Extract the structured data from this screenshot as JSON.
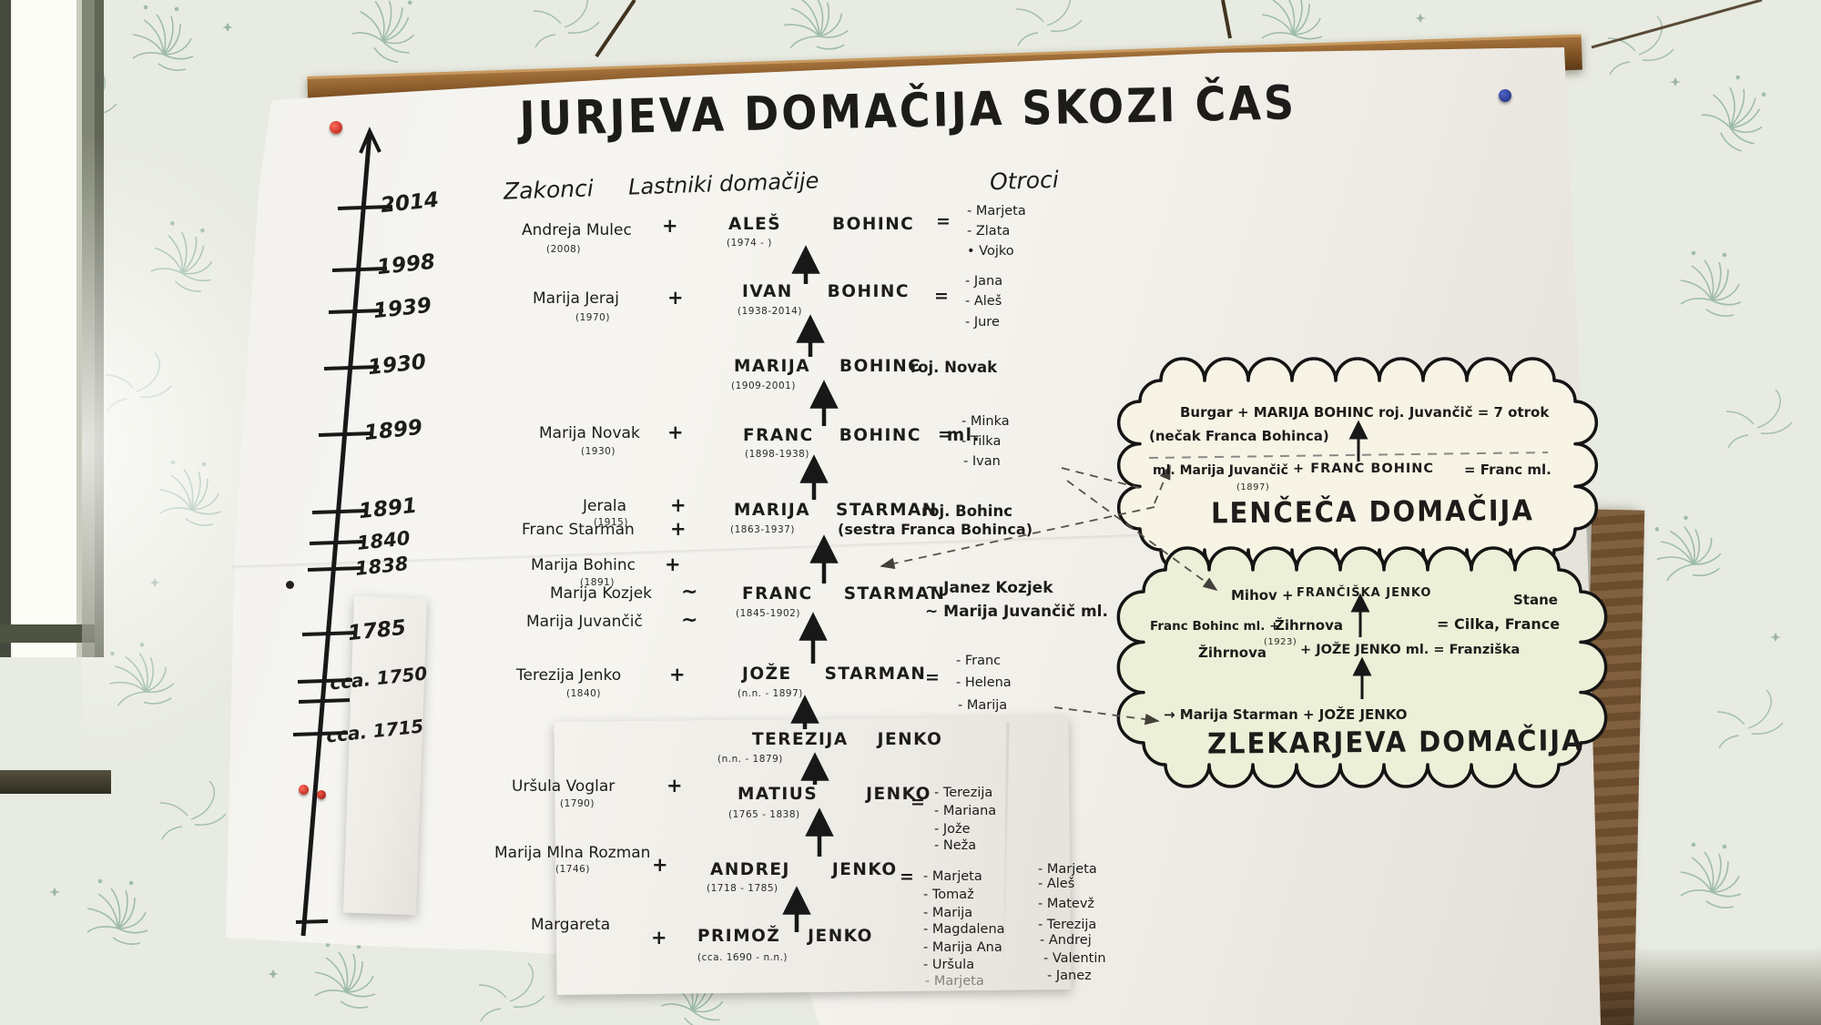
{
  "colors": {
    "ink": "#1d1c1a",
    "wallpaper": "#e8ebe1",
    "floral": "#46806d",
    "wood_rail": "#8a5a2a",
    "cloud_cream": "#f7f4e6",
    "cloud_green": "#edf0d8",
    "pin_red": "#c9271b",
    "pin_blue": "#24348c"
  },
  "poster": {
    "title": "JURJEVA DOMAČIJA SKOZI ČAS",
    "headers": {
      "spouses": "Zakonci",
      "owners": "Lastniki domačije",
      "children": "Otroci"
    },
    "timeline": {
      "years": [
        "2014",
        "1998",
        "1939",
        "1930",
        "1899",
        "1891",
        "1840",
        "1838",
        "1785",
        "cca. 1750",
        "cca. 1715"
      ]
    },
    "rows": {
      "r1": {
        "spouse": "Andreja Mulec",
        "spouse_year": "(2008)",
        "plus": "+",
        "owner": "ALEŠ BOHINC",
        "owner_dates": "(1974 - )",
        "eq": "=",
        "children": [
          "- Marjeta",
          "- Zlata",
          "• Vojko"
        ]
      },
      "r2": {
        "spouse": "Marija Jeraj",
        "spouse_year": "(1970)",
        "plus": "+",
        "owner": "IVAN BOHINC",
        "owner_dates": "(1938-2014)",
        "eq": "=",
        "children": [
          "- Jana",
          "- Aleš",
          "- Jure"
        ]
      },
      "r3": {
        "owner": "MARIJA BOHINC",
        "owner_suffix": "roj. Novak",
        "owner_dates": "(1909-2001)"
      },
      "r4": {
        "spouse": "Marija Novak",
        "spouse_year": "(1930)",
        "plus": "+",
        "owner": "FRANC BOHINC ml.",
        "owner_dates": "(1898-1938)",
        "eq": "=",
        "children": [
          "- Minka",
          "- Tilka",
          "- Ivan"
        ]
      },
      "r5": {
        "spouse1": "Jerala",
        "spouse1_year": "(1915)",
        "plus1": "+",
        "spouse2": "Franc Starman",
        "plus2": "+",
        "owner": "MARIJA STARMAN",
        "owner_suffix": "roj. Bohinc",
        "owner_dates": "(1863-1937)",
        "note": "(sestra Franca Bohinca)"
      },
      "r6": {
        "spouse": "Marija Bohinc",
        "spouse_year": "(1891)",
        "plus": "+"
      },
      "r7": {
        "spouse1": "Marija Kozjek",
        "tilde1": "~",
        "spouse2": "Marija Juvančič",
        "tilde2": "~",
        "owner": "FRANC STARMAN",
        "owner_dates": "(1845-1902)",
        "partner1": "~  Janez Kozjek",
        "partner2": "~  Marija Juvančič ml."
      },
      "r8": {
        "spouse": "Terezija Jenko",
        "spouse_year": "(1840)",
        "plus": "+",
        "owner": "JOŽE STARMAN",
        "owner_dates": "(n.n. - 1897)",
        "eq": "=",
        "children": [
          "- Franc",
          "- Helena",
          "- Marija"
        ]
      },
      "r9": {
        "owner": "TEREZIJA JENKO",
        "owner_dates": "(n.n. - 1879)"
      },
      "r10": {
        "spouse": "Uršula Voglar",
        "spouse_year": "(1790)",
        "plus": "+",
        "owner": "MATIUS JENKO",
        "owner_dates": "(1765 - 1838)",
        "eq": "=",
        "children": [
          "- Terezija",
          "- Mariana",
          "- Jože",
          "- Neža"
        ]
      },
      "r11": {
        "spouse": "Marija Mlna Rozman",
        "spouse_year": "(1746)",
        "plus": "+",
        "owner": "ANDREJ JENKO",
        "owner_dates": "(1718 - 1785)",
        "eq": "=",
        "children_col1": [
          "- Marjeta",
          "- Tomaž",
          "- Marija",
          "- Magdalena",
          "- Marija Ana",
          "- Uršula",
          "- Marjeta"
        ],
        "children_col2": [
          "- Marjeta",
          "- Aleš",
          "- Matevž",
          "- Terezija",
          "- Andrej",
          "- Valentin",
          "- Janez"
        ]
      },
      "r12": {
        "spouse": "Margareta",
        "plus": "+",
        "owner": "PRIMOŽ JENKO",
        "owner_dates": "(cca. 1690 - n.n.)"
      }
    },
    "clouds": {
      "lenceca": {
        "line1": "Burgar + MARIJA BOHINC roj. Juvančič = 7 otrok",
        "line2": "(nečak Franca Bohinca)",
        "line3_left": "ml. Marija Juvančič",
        "line3_year": "(1897)",
        "line3_mid": "+  FRANC BOHINC",
        "line3_right": "= Franc ml.",
        "title": "LENČEČA DOMAČIJA"
      },
      "zlekarjeva": {
        "line1_left": "Mihov +",
        "line1_right": "FRANČIŠKA JENKO",
        "stane": "Stane",
        "line2_left": "Franc Bohinc ml. +",
        "line2_right": "Žihrnova",
        "line2_year": "(1923)",
        "cilka": "= Cilka, France",
        "line3_left": "Žihrnova",
        "line3_right": "+ JOŽE JENKO ml. = Franziška",
        "line4": "→ Marija Starman + JOŽE JENKO",
        "title": "ZLEKARJEVA DOMAČIJA"
      }
    }
  }
}
